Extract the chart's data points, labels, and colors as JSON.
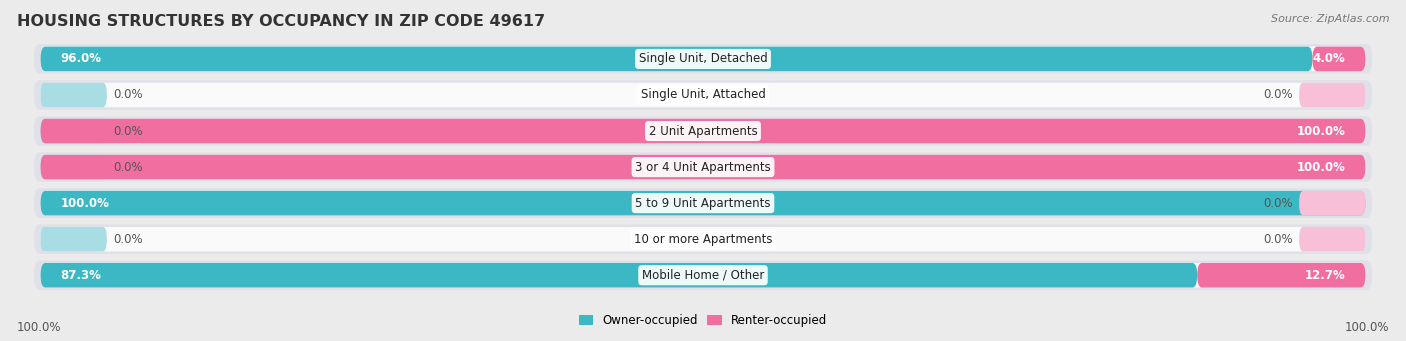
{
  "title": "HOUSING STRUCTURES BY OCCUPANCY IN ZIP CODE 49617",
  "source": "Source: ZipAtlas.com",
  "categories": [
    "Single Unit, Detached",
    "Single Unit, Attached",
    "2 Unit Apartments",
    "3 or 4 Unit Apartments",
    "5 to 9 Unit Apartments",
    "10 or more Apartments",
    "Mobile Home / Other"
  ],
  "owner_pct": [
    96.0,
    0.0,
    0.0,
    0.0,
    100.0,
    0.0,
    87.3
  ],
  "renter_pct": [
    4.0,
    0.0,
    100.0,
    100.0,
    0.0,
    0.0,
    12.7
  ],
  "owner_color": "#3BB8C3",
  "renter_color": "#F06EA0",
  "owner_color_faint": "#A8DEE3",
  "renter_color_faint": "#F8C0D8",
  "bg_color": "#EBEBEB",
  "bar_bg_color": "#FAFAFA",
  "bar_row_bg": "#E0E0E8",
  "title_fontsize": 11.5,
  "label_fontsize": 8.5,
  "pct_fontsize": 8.5,
  "source_fontsize": 8,
  "stub_pct": 5.0,
  "total_width": 100
}
